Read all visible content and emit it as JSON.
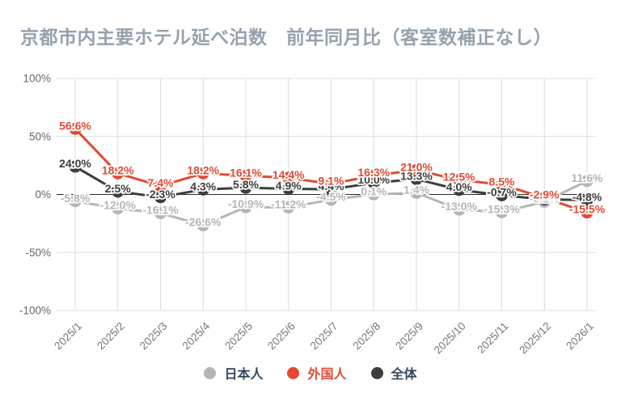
{
  "title_color": "#94a2ae",
  "axis": {
    "y_tick_labels": [
      "100%",
      "50%",
      "0%",
      "-50%",
      "-100%"
    ],
    "tick_color": "#666666",
    "x_label_color": "#757575",
    "grid_color": "#dcdcdc",
    "zero_line_color": "#2a2a2a"
  },
  "legend": {
    "items": [
      {
        "label": "日本人",
        "color": "#b5b5b5",
        "text_color": "#33475c"
      },
      {
        "label": "外国人",
        "color": "#e04a33",
        "text_color": "#e04a33"
      },
      {
        "label": "全体",
        "color": "#3d3d3d",
        "text_color": "#33475c"
      }
    ]
  },
  "chart_data": {
    "type": "line",
    "title": "京都市内主要ホテル延べ泊数　前年同月比（客室数補正なし）",
    "categories": [
      "2025/1",
      "2025/2",
      "2025/3",
      "2025/4",
      "2025/5",
      "2025/6",
      "2025/7",
      "2025/8",
      "2025/9",
      "2025/10",
      "2025/11",
      "2025/12",
      "2026/1"
    ],
    "series": [
      {
        "name": "日本人",
        "color": "#b5b5b5",
        "values": [
          -5.8,
          -12.0,
          -16.1,
          -26.6,
          -10.9,
          -11.2,
          -4.5,
          0.1,
          1.4,
          -13.0,
          -15.3,
          -6.2,
          11.6
        ]
      },
      {
        "name": "全体",
        "color": "#3d3d3d",
        "values": [
          24.0,
          2.5,
          -2.3,
          4.3,
          5.8,
          4.9,
          4.4,
          10.0,
          13.3,
          4.0,
          -0.7,
          -4.3,
          -4.8
        ]
      },
      {
        "name": "外国人",
        "color": "#e04a33",
        "values": [
          56.6,
          18.2,
          7.4,
          18.2,
          16.1,
          14.4,
          9.1,
          16.3,
          21.0,
          12.5,
          8.5,
          -2.9,
          -15.5
        ]
      }
    ],
    "yticks": [
      100,
      50,
      0,
      -50,
      -100
    ],
    "ylim": [
      -100,
      100
    ],
    "xlabel": "",
    "ylabel": "",
    "grid": true,
    "legend_position": "bottom",
    "value_suffix": "%",
    "data_labels": true
  }
}
